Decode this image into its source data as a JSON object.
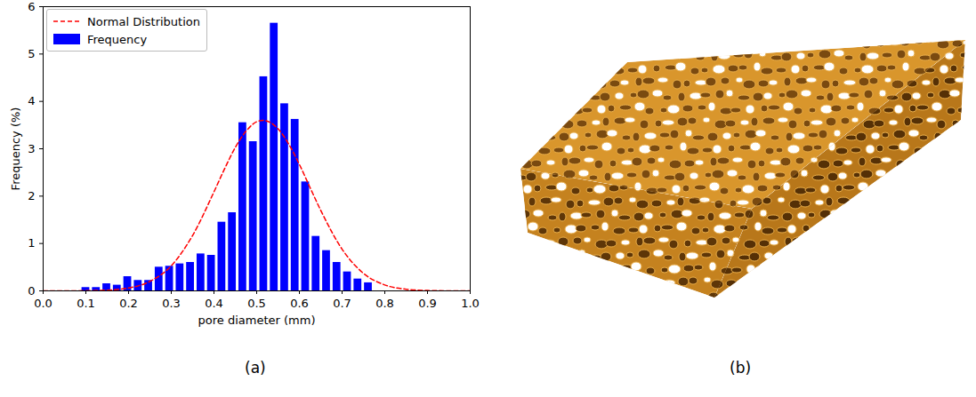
{
  "chart_data": {
    "type": "histogram",
    "xlabel": "pore diameter (mm)",
    "ylabel": "Frequency (%)",
    "xlim": [
      0,
      1
    ],
    "xticks": [
      {
        "value": 0,
        "label": "0.0"
      },
      0.1,
      0.2,
      0.3,
      0.4,
      0.5,
      0.6,
      0.7,
      0.8,
      0.9,
      {
        "value": 1,
        "label": "1.0"
      }
    ],
    "ylim": [
      0,
      6
    ],
    "yticks": [
      0,
      1,
      2,
      3,
      4,
      5,
      6
    ],
    "legend": "upper left",
    "series": [
      {
        "name": "Normal Distribution",
        "type": "line",
        "color": "#ff0000",
        "line_style": "dashed",
        "x": [
          0,
          0.05,
          0.1,
          0.15,
          0.2,
          0.25,
          0.3,
          0.35,
          0.4,
          0.425,
          0.45,
          0.475,
          0.5,
          0.515,
          0.55,
          0.575,
          0.6,
          0.625,
          0.65,
          0.7,
          0.75,
          0.8,
          0.85,
          0.9,
          0.95,
          1
        ],
        "values": [
          0,
          0.0005,
          0.003,
          0.015,
          0.06,
          0.2,
          0.53,
          1.17,
          2.09,
          2.58,
          3.03,
          3.37,
          3.57,
          3.6,
          3.42,
          3.1,
          2.67,
          2.18,
          1.7,
          0.88,
          0.37,
          0.125,
          0.035,
          0.008,
          0.0015,
          0
        ]
      },
      {
        "name": "Frequency",
        "type": "bar",
        "color": "#0000ff",
        "bins": [
          0.08775,
          0.11225,
          0.13675,
          0.16125,
          0.18575,
          0.21025,
          0.23475,
          0.25925,
          0.28375,
          0.30825,
          0.33275,
          0.35725,
          0.38175,
          0.40625,
          0.43075,
          0.45525,
          0.47975,
          0.50425,
          0.52875,
          0.55325,
          0.57775,
          0.60225,
          0.62675,
          0.65125,
          0.67575,
          0.70025,
          0.72475,
          0.74925,
          0.77375
        ],
        "values": [
          0.07,
          0.07,
          0.15,
          0.12,
          0.3,
          0.22,
          0.22,
          0.5,
          0.52,
          0.57,
          0.6,
          0.78,
          0.75,
          1.45,
          1.65,
          3.55,
          3.15,
          4.52,
          5.65,
          3.95,
          3.62,
          2.3,
          1.15,
          0.85,
          0.6,
          0.4,
          0.25,
          0.17
        ]
      }
    ]
  },
  "panels": [
    "(a)",
    "(b)"
  ]
}
